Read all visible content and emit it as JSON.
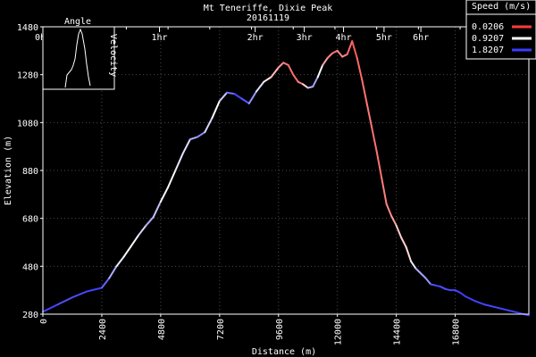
{
  "chart_data": {
    "type": "line",
    "title": "Mt Teneriffe, Dixie Peak",
    "subtitle": "20161119",
    "xlabel": "Distance (m)",
    "ylabel": "Elevation (m)",
    "xlim": [
      0,
      19800
    ],
    "ylim": [
      280,
      1480
    ],
    "x_ticks": [
      "0",
      "2400",
      "4800",
      "7200",
      "9600",
      "12000",
      "14400",
      "16800"
    ],
    "y_ticks": [
      "280",
      "480",
      "680",
      "880",
      "1080",
      "1280",
      "1480"
    ],
    "time_ticks": [
      "0hr",
      "1hr",
      "2hr",
      "3hr",
      "4hr",
      "5hr",
      "6hr"
    ],
    "time_tick_x": [
      0,
      4750,
      8650,
      10650,
      12250,
      13900,
      15400
    ],
    "grid": true,
    "legend": {
      "title": "Speed (m/s)",
      "placement": "top-right",
      "entries": [
        {
          "label": "0.0206",
          "color": "#ff3b3b"
        },
        {
          "label": "0.9207",
          "color": "#ffffff"
        },
        {
          "label": "1.8207",
          "color": "#3b3bff"
        }
      ]
    },
    "inset": {
      "title": "Angle",
      "ylabel": "Velocity"
    },
    "series": [
      {
        "x": [
          0,
          600,
          1200,
          1800,
          2400,
          2700,
          3000,
          3300,
          3600,
          3900,
          4200,
          4500,
          4800,
          5100,
          5400,
          5700,
          6000,
          6300,
          6600,
          6900,
          7200,
          7500,
          7800,
          8100,
          8400,
          8700,
          9000,
          9300,
          9600,
          9800,
          10000,
          10200,
          10400,
          10600,
          10800,
          11000,
          11200,
          11400,
          11600,
          11800,
          12000,
          12200,
          12400,
          12600,
          12800,
          13000,
          13200,
          13400,
          13600,
          13800,
          14000,
          14200,
          14400,
          14600,
          14800,
          15000,
          15200,
          15400,
          15600,
          15800,
          16000,
          16200,
          16400,
          16600,
          16800,
          17000,
          17200,
          17600,
          18000,
          18600,
          19200,
          19800
        ],
        "y": [
          290,
          320,
          350,
          375,
          390,
          430,
          480,
          520,
          565,
          610,
          650,
          685,
          750,
          810,
          880,
          950,
          1010,
          1020,
          1040,
          1100,
          1170,
          1205,
          1200,
          1180,
          1160,
          1210,
          1250,
          1270,
          1310,
          1330,
          1320,
          1280,
          1250,
          1240,
          1225,
          1230,
          1270,
          1320,
          1350,
          1370,
          1380,
          1355,
          1365,
          1420,
          1350,
          1260,
          1160,
          1060,
          960,
          850,
          740,
          690,
          650,
          600,
          560,
          500,
          470,
          450,
          430,
          405,
          400,
          395,
          385,
          380,
          380,
          370,
          355,
          335,
          320,
          305,
          290,
          275
        ],
        "speed": [
          1.82,
          1.75,
          1.7,
          1.8,
          1.78,
          1.5,
          1.1,
          0.95,
          0.92,
          1.0,
          1.2,
          1.4,
          1.0,
          0.92,
          0.95,
          1.1,
          1.05,
          1.6,
          1.3,
          0.92,
          0.92,
          1.4,
          1.75,
          1.8,
          1.6,
          1.2,
          0.92,
          0.7,
          0.5,
          0.35,
          0.25,
          0.3,
          0.2,
          0.5,
          0.95,
          1.5,
          1.2,
          0.6,
          0.4,
          0.3,
          0.25,
          0.45,
          0.3,
          0.15,
          0.2,
          0.25,
          0.3,
          0.28,
          0.25,
          0.3,
          0.35,
          0.4,
          0.55,
          0.8,
          0.6,
          0.92,
          1.1,
          1.5,
          1.2,
          1.6,
          1.8,
          1.75,
          1.7,
          1.8,
          1.75,
          1.8,
          1.82,
          1.78,
          1.8,
          1.75,
          1.82,
          1.8
        ]
      }
    ]
  }
}
